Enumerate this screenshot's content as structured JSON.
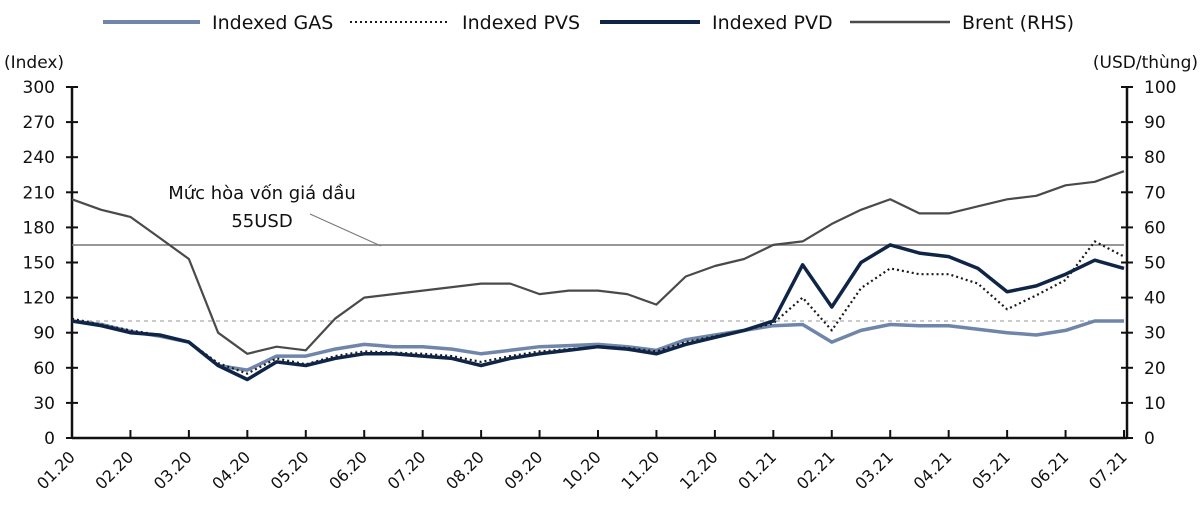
{
  "chart_data": {
    "type": "line",
    "title": "",
    "ylabel_left": "(Index)",
    "ylabel_right": "(USD/thùng)",
    "ylim_left": [
      0,
      300
    ],
    "ylim_right": [
      0,
      100
    ],
    "yticks_left": [
      "0",
      "30",
      "60",
      "90",
      "120",
      "150",
      "180",
      "210",
      "240",
      "270",
      "300"
    ],
    "yticks_right": [
      "0",
      "10",
      "20",
      "30",
      "40",
      "50",
      "60",
      "70",
      "80",
      "90",
      "100"
    ],
    "xticks": [
      "01.20",
      "02.20",
      "03.20",
      "04.20",
      "05.20",
      "06.20",
      "07.20",
      "08.20",
      "09.20",
      "10.20",
      "11.20",
      "12.20",
      "01.21",
      "02.21",
      "03.21",
      "04.21",
      "05.21",
      "06.21",
      "07.21"
    ],
    "x": [
      "2020-01-01",
      "2020-01-16",
      "2020-02-01",
      "2020-02-16",
      "2020-03-01",
      "2020-03-16",
      "2020-04-01",
      "2020-04-16",
      "2020-05-01",
      "2020-05-16",
      "2020-06-01",
      "2020-06-16",
      "2020-07-01",
      "2020-07-16",
      "2020-08-01",
      "2020-08-16",
      "2020-09-01",
      "2020-09-16",
      "2020-10-01",
      "2020-10-16",
      "2020-11-01",
      "2020-11-16",
      "2020-12-01",
      "2020-12-16",
      "2021-01-01",
      "2021-01-16",
      "2021-02-01",
      "2021-02-16",
      "2021-03-01",
      "2021-03-16",
      "2021-04-01",
      "2021-04-16",
      "2021-05-01",
      "2021-05-16",
      "2021-06-01",
      "2021-06-16",
      "2021-07-01"
    ],
    "series": [
      {
        "name": "Indexed GAS",
        "axis": "left",
        "color": "#6f86aa",
        "style": "solid",
        "values": [
          100,
          97,
          91,
          87,
          82,
          62,
          58,
          70,
          70,
          76,
          80,
          78,
          78,
          76,
          72,
          75,
          78,
          79,
          80,
          78,
          75,
          84,
          88,
          92,
          96,
          97,
          82,
          92,
          97,
          96,
          96,
          93,
          90,
          88,
          92,
          100,
          100
        ]
      },
      {
        "name": "Indexed PVS",
        "axis": "left",
        "color": "#1a1a1a",
        "style": "dotted",
        "values": [
          102,
          97,
          92,
          88,
          82,
          64,
          55,
          68,
          63,
          70,
          74,
          73,
          72,
          70,
          65,
          70,
          74,
          76,
          78,
          77,
          74,
          82,
          87,
          92,
          98,
          120,
          92,
          128,
          145,
          140,
          140,
          132,
          110,
          122,
          135,
          168,
          155
        ]
      },
      {
        "name": "Indexed PVD",
        "axis": "left",
        "color": "#0f2547",
        "style": "thick",
        "values": [
          100,
          96,
          90,
          88,
          82,
          62,
          50,
          65,
          62,
          68,
          72,
          72,
          70,
          68,
          62,
          68,
          72,
          75,
          78,
          76,
          72,
          80,
          86,
          92,
          100,
          148,
          112,
          150,
          165,
          158,
          155,
          145,
          125,
          130,
          140,
          152,
          145
        ]
      },
      {
        "name": "Brent (RHS)",
        "axis": "right",
        "color": "#4a4a4a",
        "style": "solid",
        "values": [
          68,
          65,
          63,
          57,
          51,
          30,
          24,
          26,
          25,
          34,
          40,
          41,
          42,
          43,
          44,
          44,
          41,
          42,
          42,
          41,
          38,
          46,
          49,
          51,
          55,
          56,
          61,
          65,
          68,
          64,
          64,
          66,
          68,
          69,
          72,
          73,
          76
        ]
      }
    ],
    "reference_lines": [
      {
        "axis": "right",
        "value": 55,
        "style": "solid",
        "color": "#777777"
      },
      {
        "axis": "left",
        "value": 100,
        "style": "dashed",
        "color": "#aaaaaa"
      }
    ],
    "annotation": {
      "line1": "Mức hòa vốn giá dầu",
      "line2": "55USD"
    },
    "legend_position": "top",
    "grid": false
  }
}
